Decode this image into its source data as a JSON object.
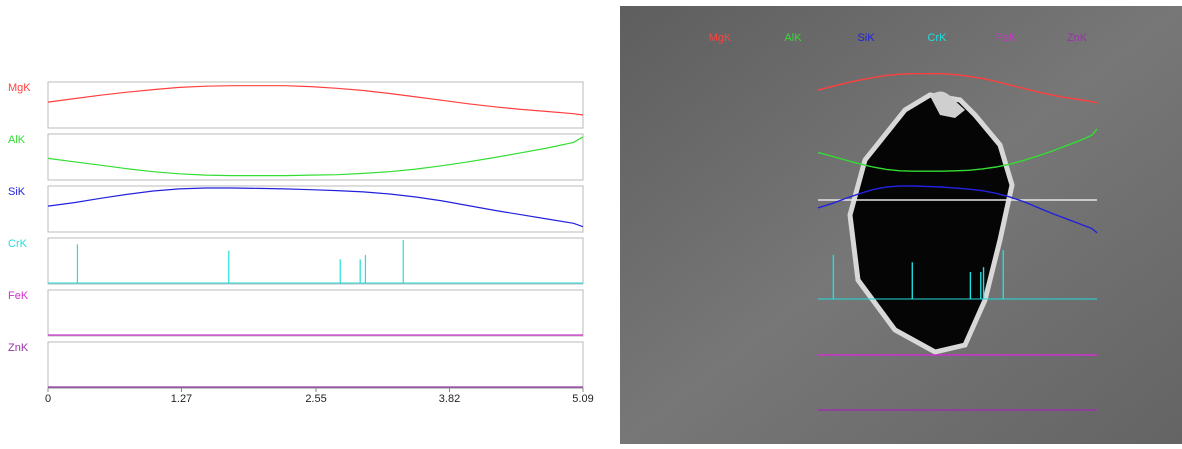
{
  "chart_data": {
    "type": "line",
    "xlim": [
      0,
      5.09
    ],
    "xticks": [
      0,
      1.27,
      2.55,
      3.82,
      5.09
    ],
    "ylim": [
      0,
      100
    ],
    "x": [
      0,
      0.25,
      0.5,
      0.75,
      1.0,
      1.25,
      1.5,
      1.75,
      2.0,
      2.25,
      2.5,
      2.75,
      3.0,
      3.25,
      3.5,
      3.75,
      4.0,
      4.25,
      4.5,
      4.75,
      5.0,
      5.09
    ],
    "series": [
      {
        "name": "MgK",
        "color": "#ff4040",
        "values": [
          58,
          66,
          74,
          81,
          87,
          92,
          95,
          96,
          96,
          96,
          94,
          90,
          85,
          78,
          70,
          62,
          54,
          47,
          41,
          36,
          31,
          28
        ]
      },
      {
        "name": "AlK",
        "color": "#33dd33",
        "values": [
          48,
          40,
          32,
          24,
          17,
          12,
          9,
          8,
          8,
          8,
          9,
          10,
          13,
          17,
          23,
          31,
          40,
          50,
          61,
          72,
          85,
          98
        ]
      },
      {
        "name": "SiK",
        "color": "#2222dd",
        "values": [
          58,
          66,
          76,
          85,
          93,
          98,
          100,
          100,
          99,
          98,
          96,
          94,
          91,
          86,
          79,
          70,
          59,
          48,
          38,
          28,
          18,
          10
        ]
      },
      {
        "name": "CrK",
        "color": "#22dddd",
        "style": "spike",
        "x": [
          0.28,
          1.72,
          2.78,
          2.97,
          3.02,
          3.38
        ],
        "values": [
          90,
          75,
          55,
          55,
          65,
          100
        ]
      },
      {
        "name": "FeK",
        "color": "#cc33cc",
        "values": [
          0,
          0,
          0,
          0,
          0,
          0,
          0,
          0,
          0,
          0,
          0,
          0,
          0,
          0,
          0,
          0,
          0,
          0,
          0,
          0,
          0,
          0
        ]
      },
      {
        "name": "ZnK",
        "color": "#9933aa",
        "values": [
          0,
          0,
          0,
          0,
          0,
          0,
          0,
          0,
          0,
          0,
          0,
          0,
          0,
          0,
          0,
          0,
          0,
          0,
          0,
          0,
          0,
          0
        ]
      }
    ]
  }
}
